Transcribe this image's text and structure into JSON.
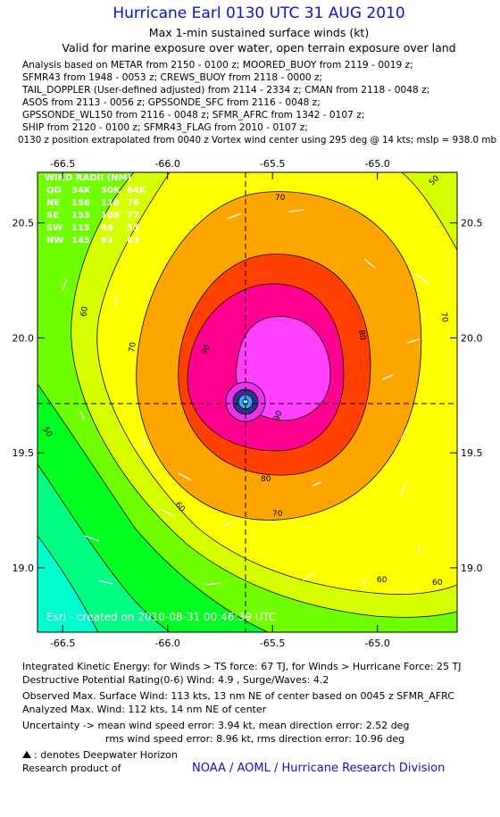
{
  "header": {
    "title": "Hurricane Earl 0130 UTC 31 AUG 2010",
    "subtitle": "Max 1-min sustained surface winds (kt)",
    "validity": "Valid for marine exposure over water, open terrain exposure over land",
    "analysis_lines": [
      "Analysis based on METAR from 2150 - 0100 z; MOORED_BUOY from 2119 - 0019 z;",
      "SFMR43 from 1948 - 0053 z; CREWS_BUOY from 2118 - 0000 z;",
      "TAIL_DOPPLER (User-defined adjusted) from 2114 - 2334 z; CMAN from 2118 - 0048 z;",
      "ASOS from 2113 - 0056 z; GPSSONDE_SFC from 2116 - 0048 z;",
      "GPSSONDE_WL150 from 2116 - 0048 z; SFMR_AFRC from 1342 - 0107 z;",
      "SHIP from 2120 - 0100 z; SFMR43_FLAG from 2010 - 0107 z;"
    ],
    "position_note": "0130 z position extrapolated from 0040 z Vortex wind center using 295 deg @ 14 kts; mslp = 938.0 mb"
  },
  "map": {
    "xlim": [
      -66.62,
      -64.62
    ],
    "ylim": [
      18.72,
      20.72
    ],
    "xticks": [
      -66.5,
      {
        "value": -66,
        "label": "-66.0"
      },
      -65.5,
      {
        "value": -65,
        "label": "-65.0"
      }
    ],
    "yticks": [
      {
        "value": 19,
        "label": "19.0"
      },
      19.5,
      {
        "value": 20,
        "label": "20.0"
      },
      20.5
    ],
    "wind_radii": {
      "title": "WIND RADII (NM)",
      "rows": [
        [
          "QD",
          "34K",
          "50K",
          "64K"
        ],
        [
          "NE",
          "156",
          "110",
          "76"
        ],
        [
          "SE",
          "153",
          "108",
          "77"
        ],
        [
          "SW",
          "115",
          "66",
          "53"
        ],
        [
          "NW",
          "145",
          "91",
          "63"
        ]
      ]
    },
    "contour_labels": [
      70,
      70,
      70,
      60,
      80,
      90,
      80,
      70,
      60,
      60,
      50,
      50,
      60,
      90
    ],
    "credit": "Esri - created on 2010-08-31 00:46:39 UTC"
  },
  "footer": {
    "lines": [
      "Integrated Kinetic Energy:  for Winds > TS force: 67 TJ,  for Winds > Hurricane Force: 25 TJ",
      "Destructive Potential Rating(0-6)  Wind: 4.9 , Surge/Waves: 4.2",
      "Observed Max. Surface Wind: 113 kts, 13 nm NE of center based on 0045 z SFMR_AFRC",
      "Analyzed Max. Wind: 112 kts, 14 nm NE of center",
      "Uncertainty -> mean wind speed error: 3.94 kt,   mean direction error: 2.52 deg",
      "rms wind speed error: 8.96 kt,  rms direction error: 10.96 deg"
    ],
    "legend_note": ": denotes Deepwater Horizon",
    "research": "Research product of",
    "org": "NOAA / AOML / Hurricane Research Division"
  }
}
